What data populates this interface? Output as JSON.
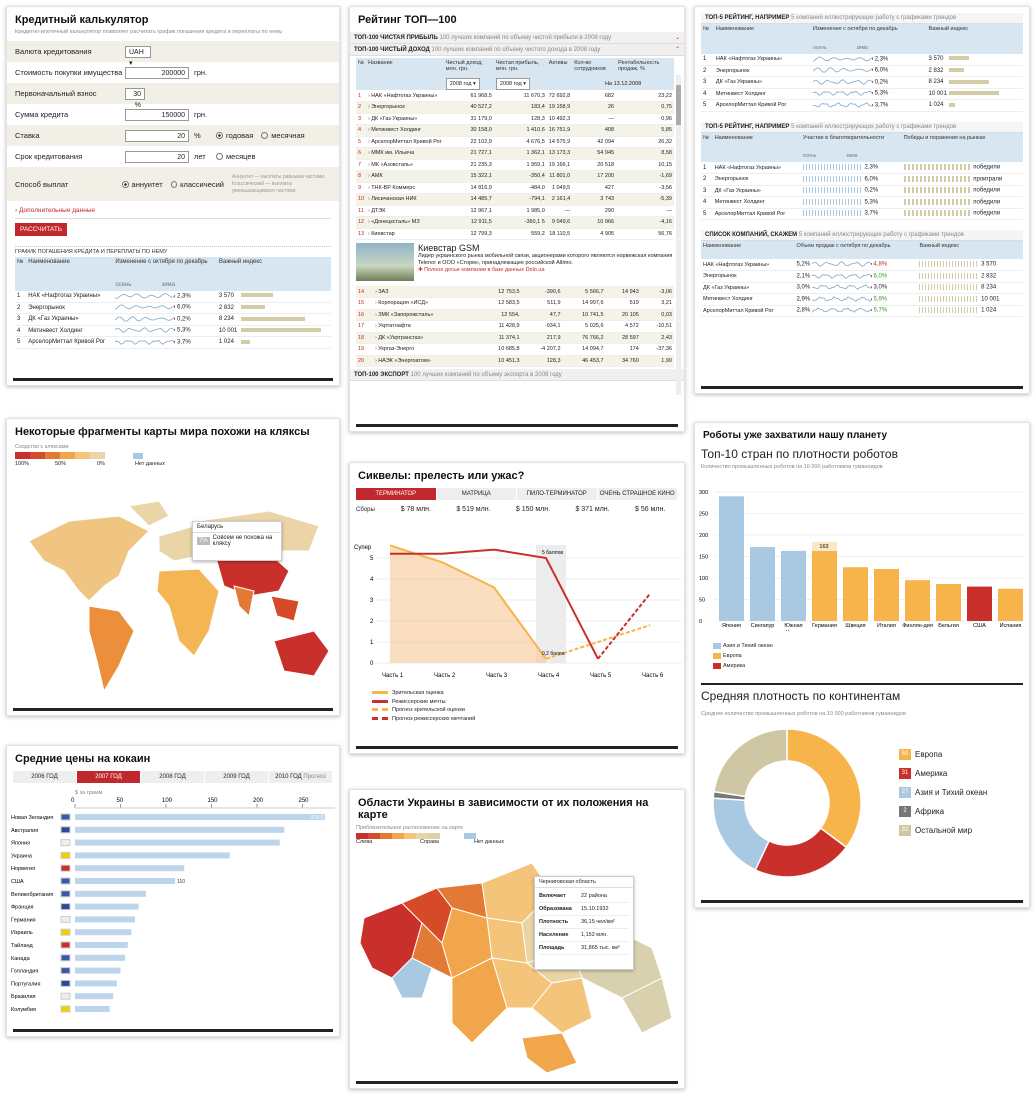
{
  "calc": {
    "title": "Кредитный калькулятор",
    "subtitle": "Кредитно-ипотечный калькулятор позволяет расчитать график погашения кредита и переплаты по нему.",
    "rows": [
      {
        "label": "Валюта кредитования",
        "value": "UAH"
      },
      {
        "label": "Стоимость покупки имущества",
        "value": "200000",
        "unit": "грн."
      },
      {
        "label": "Первоначальный взнос",
        "value": "30 %"
      },
      {
        "label": "Сумма кредита",
        "value": "150000",
        "unit": "грн."
      },
      {
        "label": "Ставка",
        "value": "20",
        "unit": "%",
        "r1": "годовая",
        "r2": "месячная"
      },
      {
        "label": "Срок кредитования",
        "value": "20",
        "unit": "лет",
        "r2": "месяцев"
      },
      {
        "label": "Способ выплат",
        "r1": "аннуитет",
        "r2": "классичесий",
        "note": "Аннуитет — выплаты равными частями. Классический — выплаты уменьшающимися частями."
      }
    ],
    "extra": "Дополнительные данные",
    "button": "РАССЧИТАТЬ",
    "section": "ГРАФИК ПОГАШЕНИЯ КРЕДИТА И ПЕРЕПЛАТЫ ПО НЕМУ",
    "cols": [
      "№",
      "Наименование",
      "Изменение с октября по декабрь",
      "Важный индекс"
    ],
    "sub": [
      "осень",
      "зима"
    ],
    "rows2": [
      {
        "n": "1",
        "name": "НАК «Нафтогаз Украины»",
        "p": "2,3%",
        "v": "3 570",
        "b": 0.4
      },
      {
        "n": "2",
        "name": "Энергорынок",
        "p": "6,0%",
        "v": "2 832",
        "b": 0.3
      },
      {
        "n": "3",
        "name": "ДК «Газ Украины»",
        "p": "0,2%",
        "v": "8 234",
        "b": 0.8
      },
      {
        "n": "4",
        "name": "Метинвест Холдинг",
        "p": "5,3%",
        "v": "10 001",
        "b": 1
      },
      {
        "n": "5",
        "name": "АрселорМиттал Кривой Рог",
        "p": "3,7%",
        "v": "1 024",
        "b": 0.12
      }
    ]
  },
  "top": {
    "title": "Рейтинг ТОП—100",
    "acc1": "ТОП-100 ЧИСТАЯ ПРИБЫЛЬ",
    "acc1d": "100 лучших компаний по объему чистой прибыли в 2008 году",
    "acc2": "ТОП-100 ЧИСТЫЙ ДОХОД",
    "acc2d": "100 лучших компаний по объему чистого дохода в 2008 году",
    "cols": [
      "№",
      "Название",
      "Чистый доход, млн. грн.",
      "Чистая прибыль, млн. грн.",
      "Активы",
      "Кол-во сотрудников",
      "Рентабельность продаж, %"
    ],
    "sel1": "2008 год",
    "sel2": "2008 год",
    "date": "На 13.12.2008",
    "rows": [
      [
        "1",
        "НАК «Нафтогаз Украины»",
        "61 968,5",
        "11 670,3",
        "72 692,8",
        "682",
        "23,22"
      ],
      [
        "2",
        "Энергорынок",
        "40 527,2",
        "183,4",
        "19 158,9",
        "26",
        "0,75"
      ],
      [
        "3",
        "ДК «Газ Украины»",
        "31 179,0",
        "128,3",
        "10 492,3",
        "—",
        "0,96"
      ],
      [
        "4",
        "Метинвест Холдинг",
        "30 158,0",
        "1 410,6",
        "16 751,9",
        "408",
        "5,85"
      ],
      [
        "5",
        "АрселорМиттал Кривой Рог",
        "22 102,9",
        "4 676,5",
        "14 575,9",
        "42 094",
        "26,32"
      ],
      [
        "6",
        "ММК им. Ильича",
        "21 727,1",
        "1 362,1",
        "13 173,3",
        "54 945",
        "8,58"
      ],
      [
        "7",
        "МК «Азовсталь»",
        "21 235,3",
        "1 959,1",
        "19 166,1",
        "20 518",
        "10,15"
      ],
      [
        "8",
        "АМК",
        "15 322,1",
        "-350,4",
        "11 801,0",
        "17 200",
        "-1,69"
      ],
      [
        "9",
        "ТНК-ВР Коммерс",
        "14 816,9",
        "-484,0",
        "1 049,5",
        "427",
        "-3,56"
      ],
      [
        "10",
        "Лисичанская НИК",
        "14 485,7",
        "-794,1",
        "2 161,4",
        "3 743",
        "-5,39"
      ],
      [
        "11",
        "ДТЭК",
        "12 967,1",
        "1 985,0",
        "—",
        "290",
        "—"
      ],
      [
        "12",
        "«Донецксталь» МЗ",
        "12 911,5",
        "-360,1 5",
        "9 049,6",
        "10 966",
        "-4,16"
      ],
      [
        "13",
        "Киевстар",
        "12 799,3",
        "559,2",
        "18 110,5",
        "4 905",
        "56,76"
      ]
    ],
    "promo": {
      "name": "Киевстар GSM",
      "text": "Лидер украинского рынка мобильной связи, акционерами которого являются норвежская компания Telenor и ООО «Сторм», принадлежащее российской Altimo.",
      "link": "Полное досье компании в базе данных Delo.ua"
    },
    "rows2": [
      [
        "14",
        "ЗАЗ",
        "12 753,5",
        "-390,6",
        "5 566,7",
        "14 943",
        "-3,06"
      ],
      [
        "15",
        "Корпорация «ИСД»",
        "12 583,5",
        "511,9",
        "14 997,6",
        "519",
        "3,21"
      ],
      [
        "16",
        "ЗМК «Запорожсталь»",
        "12 554,",
        "47,7",
        "10 741,5",
        "20 105",
        "0,03"
      ],
      [
        "17",
        "Укртатнафта",
        "11 428,9",
        "-934,1",
        "5 025,6",
        "4 572",
        "-10,51"
      ],
      [
        "18",
        "ДК «Укртрансгаз»",
        "11 374,1",
        "217,9",
        "76 766,2",
        "28 597",
        "2,43"
      ],
      [
        "19",
        "Укргаз-Энерго",
        "10 685,8",
        "-4 207,2",
        "14 094,7",
        "174",
        "-37,36"
      ],
      [
        "20",
        "НАЭК «Энергоатом»",
        "10 451,3",
        "128,3",
        "46 453,7",
        "34 760",
        "1,90"
      ]
    ],
    "acc3": "ТОП-100 ЭКСПОРТ",
    "acc3d": "100 лучших компаний по объему экспорта в 2008 году"
  },
  "r1": {
    "title": "ТОП-5 РЕЙТИНГ, НАПРИМЕР",
    "desc": "5 компаний иллюстрирующих работу с графиками трендов",
    "cols": [
      "№",
      "Наименование",
      "Изменение с октября по декабрь",
      "Важный индекс"
    ],
    "sub": [
      "осень",
      "зима"
    ],
    "rows": [
      {
        "n": "1",
        "name": "НАК «Нафтогаз Украины»",
        "p": "2,3%",
        "v": "3 570",
        "b": 0.4
      },
      {
        "n": "2",
        "name": "Энергорынок",
        "p": "6,0%",
        "v": "2 832",
        "b": 0.3
      },
      {
        "n": "3",
        "name": "ДК «Газ Украины»",
        "p": "0,2%",
        "v": "8 234",
        "b": 0.8
      },
      {
        "n": "4",
        "name": "Метинвест Холдинг",
        "p": "5,3%",
        "v": "10 001",
        "b": 1
      },
      {
        "n": "5",
        "name": "АрселорМиттал Кривой Рог",
        "p": "3,7%",
        "v": "1 024",
        "b": 0.12
      }
    ]
  },
  "r2": {
    "title": "ТОП-5 РЕЙТИНГ, НАПРИМЕР",
    "desc": "5 компаний иллюстрирующих работу с графиками трендов",
    "cols": [
      "№",
      "Наименование",
      "Участие в благотворительности",
      "Победы и поражения на рынках"
    ],
    "sub": [
      "осень",
      "зима"
    ],
    "rows": [
      {
        "n": "1",
        "name": "НАК «Нафтогаз Украины»",
        "p": "2,3%",
        "w": "победили"
      },
      {
        "n": "2",
        "name": "Энергорынок",
        "p": "6,0%",
        "w": "проиграли"
      },
      {
        "n": "3",
        "name": "ДК «Газ Украины»",
        "p": "0,2%",
        "w": "победили"
      },
      {
        "n": "4",
        "name": "Метинвест Холдинг",
        "p": "5,3%",
        "w": "победили"
      },
      {
        "n": "5",
        "name": "АрселорМиттал Кривой Рог",
        "p": "3,7%",
        "w": "победили"
      }
    ]
  },
  "r3": {
    "title": "СПИСОК КОМПАНИЙ, СКАЖЕМ",
    "desc": "5 компаний иллюстрирующих работу с графиками трендов",
    "cols": [
      "Наименование",
      "Объем продаж с октября по декабрь",
      "Важный индекс"
    ],
    "rows": [
      {
        "name": "НАК «Нафтогаз Украины»",
        "p": "5,2%",
        "q": "4,8%",
        "qc": "red",
        "v": "3 570"
      },
      {
        "name": "Энергорынок",
        "p": "2,1%",
        "q": "6,0%",
        "qc": "green",
        "v": "2 832"
      },
      {
        "name": "ДК «Газ Украины»",
        "p": "3,0%",
        "q": "3,0%",
        "qc": "",
        "v": "8 234"
      },
      {
        "name": "Метинвест Холдинг",
        "p": "2,9%",
        "q": "5,9%",
        "qc": "green",
        "v": "10 001"
      },
      {
        "name": "АрселорМиттал Кривой Рог",
        "p": "2,8%",
        "q": "5,7%",
        "qc": "green",
        "v": "1 024"
      }
    ]
  },
  "world": {
    "title": "Некоторые фрагменты карты мира похожи на кляксы",
    "legend": "Сходство с кляксами",
    "ticks": [
      "100%",
      "50%",
      "0%"
    ],
    "nodata": "Нет данных",
    "tip_country": "Беларусь",
    "tip_pct": "7%",
    "tip_text": "Совсем не похожа на кляксу"
  },
  "sequels": {
    "title": "Сиквелы: прелесть или ужас?",
    "tabs": [
      "ТЕРМИНАТОР",
      "МАТРИЦА",
      "ПИЛО-ТЕРМИНАТОР",
      "ОЧЕНЬ СТРАШНОЕ КИНО"
    ],
    "box_label": "Сборы",
    "box": [
      "$ 78 млн.",
      "$ 519 млн.",
      "$ 150 млн.",
      "$ 371 млн.",
      "$ 56 млн."
    ],
    "ylabel": "Супер",
    "yticks": [
      "5",
      "4",
      "3",
      "2",
      "1",
      "0"
    ],
    "parts": [
      "Часть 1",
      "Часть 2",
      "Часть 3",
      "Часть 4",
      "Часть 5",
      "Часть 6"
    ],
    "ann_top": "5 баллов",
    "ann_bot": "0,2 балла",
    "legend": [
      "Зрительская оценка",
      "Режиссерские мечты",
      "Прогноз зрительской оценки",
      "Прогноз режиссерских мечтаний"
    ]
  },
  "cocaine": {
    "title": "Средние цены на кокаин",
    "tabs": [
      "2006 ГОД",
      "2007 ГОД",
      "2008 ГОД",
      "2009 ГОД",
      "2010 ГОД"
    ],
    "tab5note": "Прогноз",
    "unit": "$ за грамм",
    "ticks": [
      "0",
      "50",
      "100",
      "150",
      "200",
      "250"
    ],
    "rows": [
      {
        "c": "Новая Зеландия",
        "v": 274.5,
        "lbl": "274.5"
      },
      {
        "c": "Австралия",
        "v": 230
      },
      {
        "c": "Япония",
        "v": 225
      },
      {
        "c": "Украина",
        "v": 170
      },
      {
        "c": "Норвегия",
        "v": 120
      },
      {
        "c": "США",
        "v": 110,
        "lbl": "110"
      },
      {
        "c": "Великобритания",
        "v": 78
      },
      {
        "c": "Франция",
        "v": 70
      },
      {
        "c": "Германия",
        "v": 66
      },
      {
        "c": "Израиль",
        "v": 62
      },
      {
        "c": "Тайланд",
        "v": 58
      },
      {
        "c": "Канада",
        "v": 55
      },
      {
        "c": "Голландия",
        "v": 50
      },
      {
        "c": "Португалия",
        "v": 46
      },
      {
        "c": "Бразилия",
        "v": 42
      },
      {
        "c": "Колумбия",
        "v": 38
      }
    ]
  },
  "ukr": {
    "title": "Области Украины в зависимости от их положения на карте",
    "legend": "Приблизительное расположение на карте",
    "left": "Слева",
    "right": "Справа",
    "nodata": "Нет данных",
    "tip_title": "Черниговская область",
    "tip": [
      [
        "Включает",
        "22 района"
      ],
      [
        "Образована",
        "15.10.1932"
      ],
      [
        "Плотность",
        "36,15 чел/км²"
      ],
      [
        "Население",
        "1,152 млн."
      ],
      [
        "Площадь",
        "31,865 тыс. км²"
      ]
    ]
  },
  "robots": {
    "title": "Роботы уже захватили нашу планету",
    "sub1": "Топ-10 стран по плотности роботов",
    "desc1": "Количество промышленных роботов на 10 000 работников гуманоидов",
    "chart_data": {
      "type": "bar",
      "categories": [
        "Япония",
        "Сингапур",
        "Южная Корея",
        "Германия",
        "Швеция",
        "Италия",
        "Финлян-дия",
        "Бельгия",
        "США",
        "Испания"
      ],
      "values": [
        290,
        172,
        163,
        163,
        125,
        121,
        95,
        86,
        80,
        75
      ],
      "ylim": [
        0,
        300
      ],
      "yticks": [
        0,
        50,
        100,
        150,
        200,
        250,
        300
      ],
      "groups": [
        "a",
        "a",
        "a",
        "e",
        "e",
        "e",
        "e",
        "e",
        "m",
        "e"
      ],
      "highlight": "163"
    },
    "legend": [
      "Азия и Тихий океан",
      "Европа",
      "Америка"
    ],
    "colors": {
      "a": "#a9c9e2",
      "e": "#f6b44a",
      "m": "#c9302c",
      "o": "#cfc7a3",
      "f": "#777777"
    },
    "sub2": "Средняя плотность по континентам",
    "desc2": "Среднее количество промышленных роботов на 10 000 работников гуманоидов",
    "donut": [
      {
        "name": "Европа",
        "v": 50,
        "c": "e"
      },
      {
        "name": "Америка",
        "v": 31,
        "c": "m"
      },
      {
        "name": "Азия и Тихий океан",
        "v": 27,
        "c": "a"
      },
      {
        "name": "Африка",
        "v": 2,
        "c": "f"
      },
      {
        "name": "Остальной мир",
        "v": 32,
        "c": "o"
      }
    ]
  }
}
